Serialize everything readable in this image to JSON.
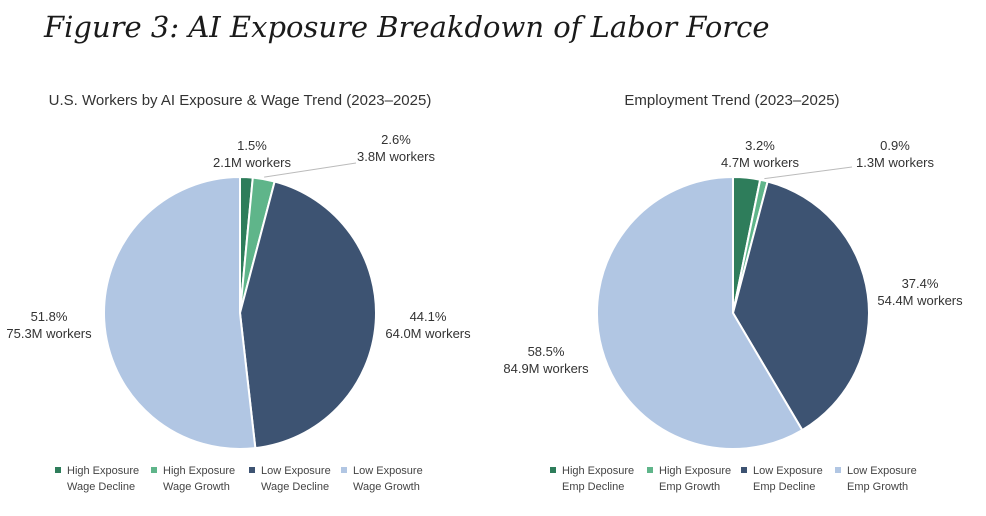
{
  "figure_title": "Figure 3: AI Exposure Breakdown of Labor Force",
  "colors": {
    "high_decline": "#2e7d5b",
    "high_growth": "#5fb58a",
    "low_decline": "#3d5372",
    "low_growth": "#b1c6e3"
  },
  "chart_data": [
    {
      "type": "pie",
      "title": "U.S. Workers by AI Exposure & Wage Trend (2023–2025)",
      "slices": [
        {
          "name": "High Exposure Wage Decline",
          "legend": [
            "High Exposure",
            "Wage Decline"
          ],
          "percent": 1.5,
          "pct_label": "1.5%",
          "workers_label": "2.1M workers"
        },
        {
          "name": "High Exposure Wage Growth",
          "legend": [
            "High Exposure",
            "Wage Growth"
          ],
          "percent": 2.6,
          "pct_label": "2.6%",
          "workers_label": "3.8M workers"
        },
        {
          "name": "Low Exposure Wage Decline",
          "legend": [
            "Low Exposure",
            "Wage Decline"
          ],
          "percent": 44.1,
          "pct_label": "44.1%",
          "workers_label": "64.0M workers"
        },
        {
          "name": "Low Exposure Wage Growth",
          "legend": [
            "Low Exposure",
            "Wage Growth"
          ],
          "percent": 51.8,
          "pct_label": "51.8%",
          "workers_label": "75.3M workers"
        }
      ],
      "legend_placement": "bottom"
    },
    {
      "type": "pie",
      "title": "Employment Trend (2023–2025)",
      "slices": [
        {
          "name": "High Exposure Emp Decline",
          "legend": [
            "High Exposure",
            "Emp Decline"
          ],
          "percent": 3.2,
          "pct_label": "3.2%",
          "workers_label": "4.7M workers"
        },
        {
          "name": "High Exposure Emp Growth",
          "legend": [
            "High Exposure",
            "Emp Growth"
          ],
          "percent": 0.9,
          "pct_label": "0.9%",
          "workers_label": "1.3M workers"
        },
        {
          "name": "Low Exposure Emp Decline",
          "legend": [
            "Low Exposure",
            "Emp Decline"
          ],
          "percent": 37.4,
          "pct_label": "37.4%",
          "workers_label": "54.4M workers"
        },
        {
          "name": "Low Exposure Emp Growth",
          "legend": [
            "Low Exposure",
            "Emp Growth"
          ],
          "percent": 58.5,
          "pct_label": "58.5%",
          "workers_label": "84.9M workers"
        }
      ],
      "legend_placement": "bottom"
    }
  ]
}
